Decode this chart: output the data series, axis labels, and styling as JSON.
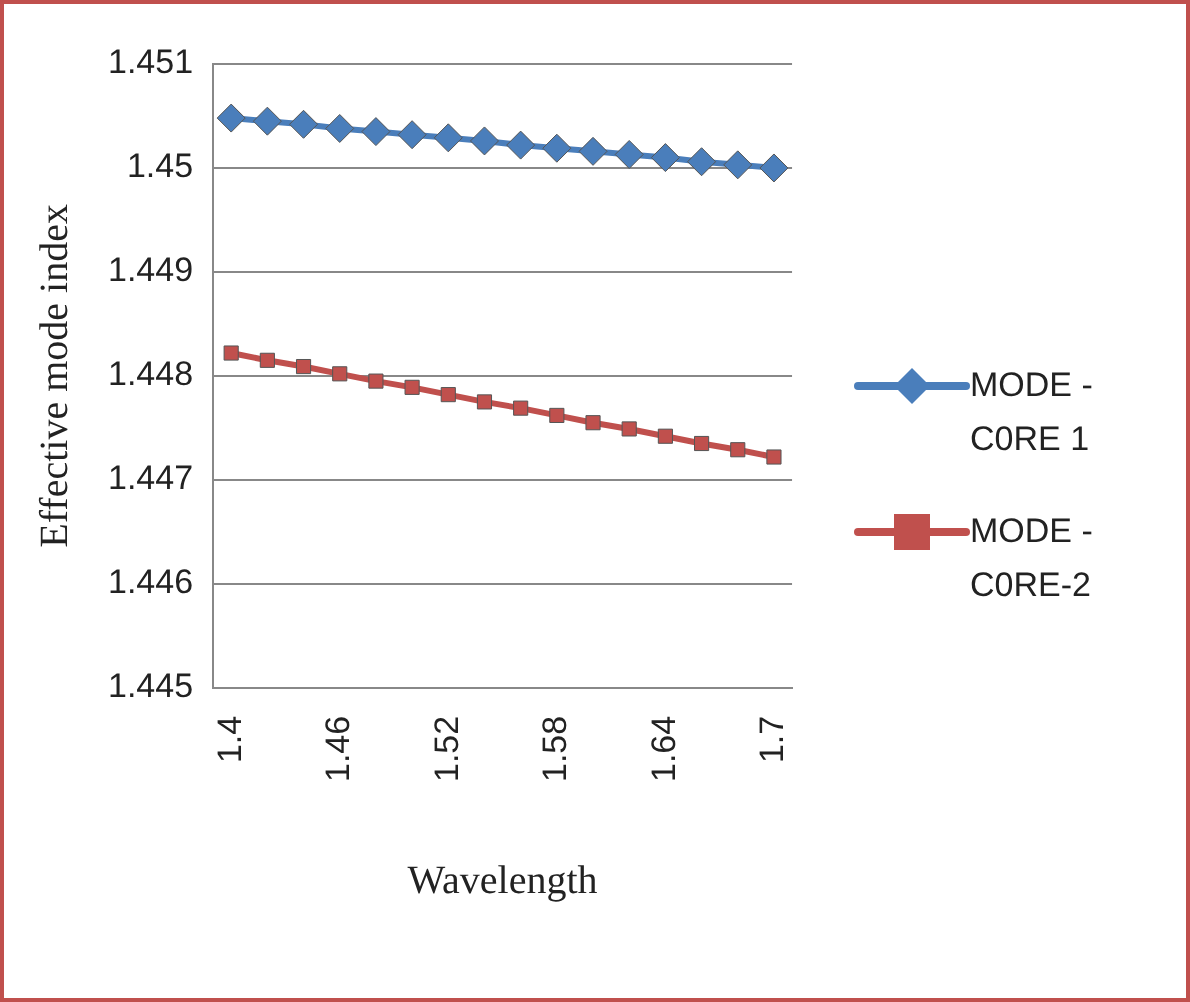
{
  "chart_data": {
    "type": "line",
    "xlabel": "Wavelength",
    "ylabel": "Effective mode index",
    "categories": [
      "1.4",
      null,
      null,
      "1.46",
      null,
      null,
      "1.52",
      null,
      null,
      "1.58",
      null,
      null,
      "1.64",
      null,
      null,
      "1.7"
    ],
    "series": [
      {
        "name": "MODE - C0RE 1",
        "color": "#4a7ebb",
        "marker": "diamond",
        "values": [
          1.45048,
          1.45045,
          1.45042,
          1.45038,
          1.45035,
          1.45032,
          1.45029,
          1.45026,
          1.45022,
          1.45019,
          1.45016,
          1.45013,
          1.4501,
          1.45006,
          1.45003,
          1.45
        ]
      },
      {
        "name": "MODE - C0RE-2",
        "color": "#c0504d",
        "marker": "square",
        "values": [
          1.44822,
          1.44815,
          1.44809,
          1.44802,
          1.44795,
          1.44789,
          1.44782,
          1.44775,
          1.44769,
          1.44762,
          1.44755,
          1.44749,
          1.44742,
          1.44735,
          1.44729,
          1.44722
        ]
      }
    ],
    "ylim": [
      1.445,
      1.451
    ],
    "yticks": [
      1.445,
      1.446,
      1.447,
      1.448,
      1.449,
      1.45,
      1.451
    ],
    "grid": "y",
    "legend": "right"
  }
}
